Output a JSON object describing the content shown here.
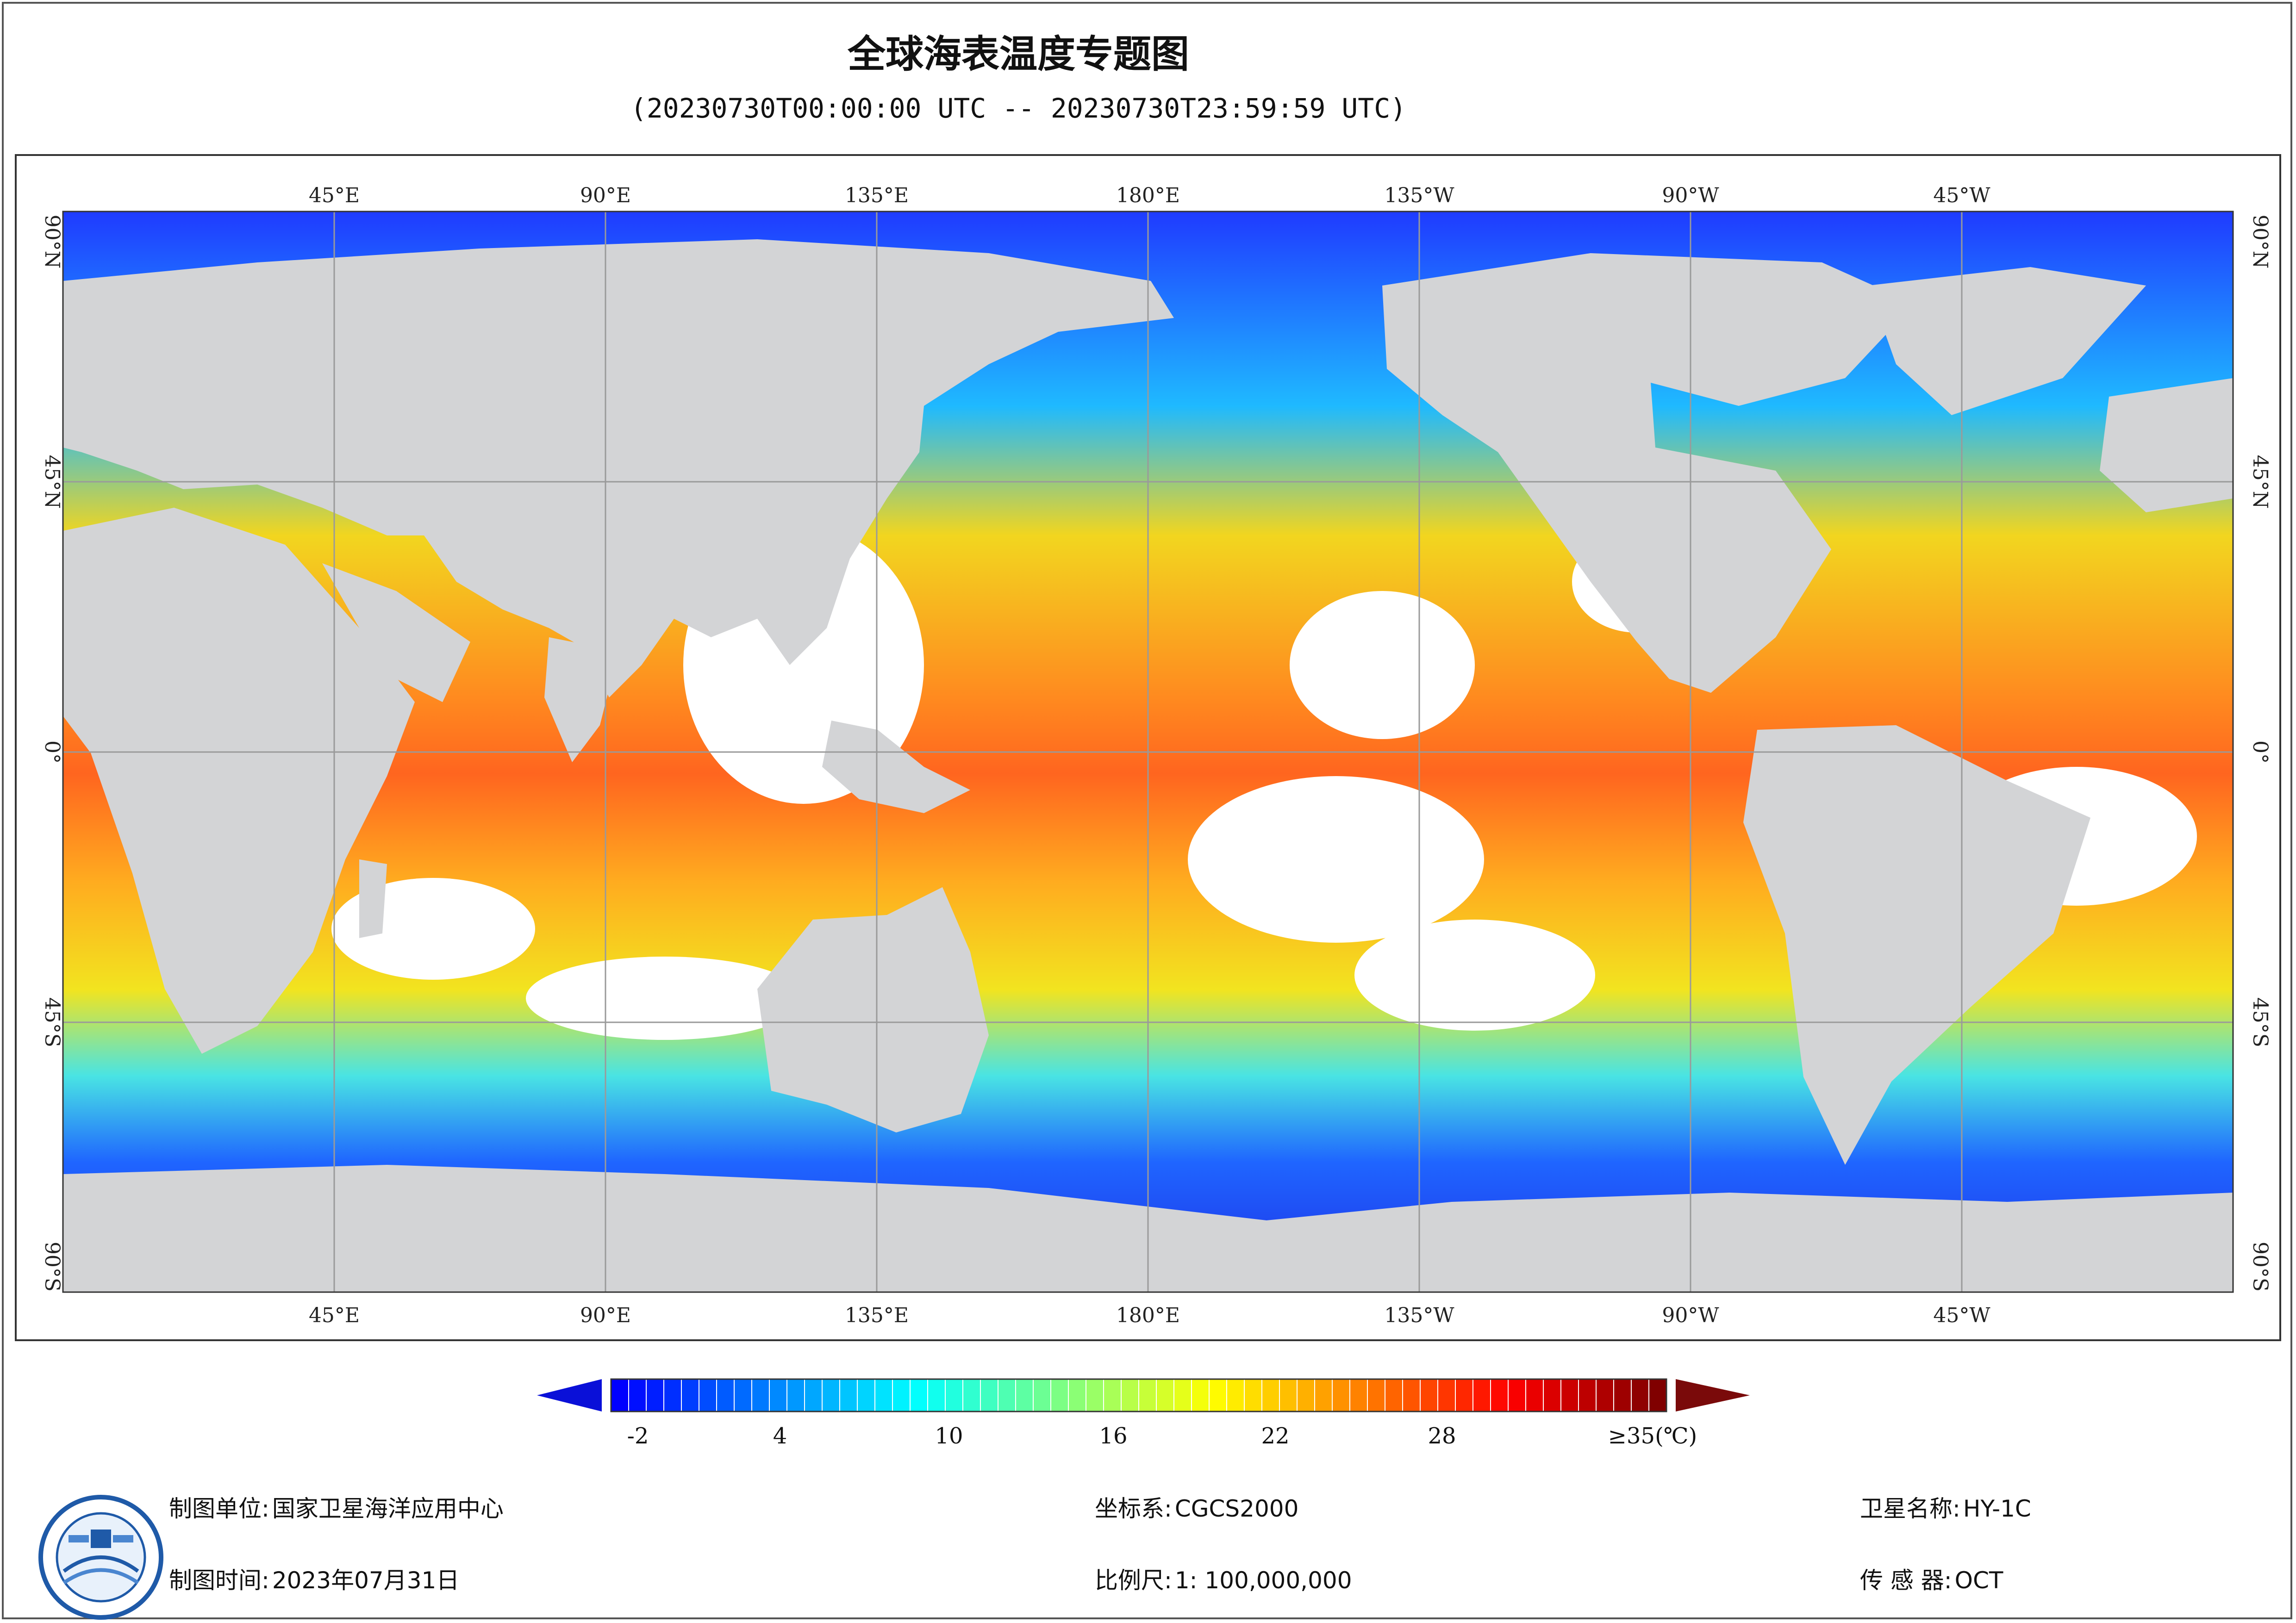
{
  "title": "全球海表温度专题图",
  "subtitle": "(20230730T00:00:00 UTC -- 20230730T23:59:59 UTC)",
  "map": {
    "top_lon_labels": [
      "45°E",
      "90°E",
      "135°E",
      "180°E",
      "135°W",
      "90°W",
      "45°W"
    ],
    "bottom_lon_labels": [
      "45°E",
      "90°E",
      "135°E",
      "180°E",
      "135°W",
      "90°W",
      "45°W"
    ],
    "left_lat_labels": [
      "90°N",
      "45°N",
      "0°",
      "45°S",
      "90°S"
    ],
    "right_lat_labels": [
      "90°N",
      "45°N",
      "0°",
      "45°S",
      "90°S"
    ],
    "colors": {
      "land": "#d3d4d6",
      "no_data": "#ffffff",
      "grid": "#9a9a9a"
    }
  },
  "legend": {
    "tick_labels": [
      "-2",
      "4",
      "10",
      "16",
      "22",
      "28",
      "≥35(℃)"
    ],
    "colors": [
      "#0000ff",
      "#0040ff",
      "#0080ff",
      "#00c0ff",
      "#00ffff",
      "#40ffc0",
      "#80ff80",
      "#c0ff40",
      "#ffff00",
      "#ffc000",
      "#ff8000",
      "#ff4000",
      "#ff0000",
      "#c00000",
      "#800000"
    ]
  },
  "footer": {
    "unit_label": "制图单位:",
    "unit_value": "国家卫星海洋应用中心",
    "time_label": "制图时间:",
    "time_value": "2023年07月31日",
    "coord_label": "坐标系:",
    "coord_value": "CGCS2000",
    "scale_label": "比例尺:",
    "scale_value": "1: 100,000,000",
    "sat_label": "卫星名称:",
    "sat_value": "HY-1C",
    "sensor_label": "传 感 器:",
    "sensor_value": "OCT"
  }
}
